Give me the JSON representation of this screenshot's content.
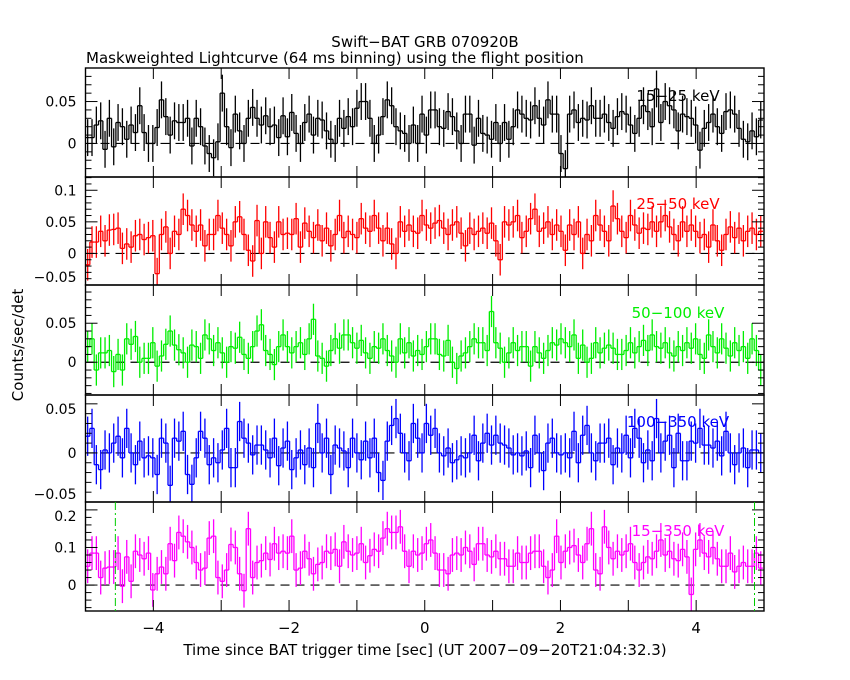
{
  "chart_data": {
    "type": "line",
    "title": "Swift−BAT GRB 070920B",
    "subtitle": "Maskweighted Lightcurve (64 ms binning) using the flight position",
    "xlabel": "Time since BAT trigger time [sec] (UT 2007−09−20T21:04:32.3)",
    "ylabel": "Counts/sec/det",
    "xlim": [
      -5,
      5
    ],
    "x_start": -5.0,
    "bin_width": 0.064,
    "xticks": [
      -4,
      -2,
      0,
      2,
      4
    ],
    "xtick_labels": [
      "−4",
      "−2",
      "0",
      "2",
      "4"
    ],
    "xminor_step": 1,
    "markers": [
      {
        "x": -4.56,
        "color": "#00cc00",
        "panel": 4
      },
      {
        "x": 4.86,
        "color": "#00cc00",
        "panel": 4
      }
    ],
    "panels": [
      {
        "name": "15−25 keV",
        "color": "#000000",
        "ylim": [
          -0.04,
          0.09
        ],
        "yticks": [
          0,
          0.05
        ],
        "ytick_labels": [
          "0",
          "0.05"
        ],
        "yminor_step": 0.01,
        "error": 0.022,
        "values": [
          0.007,
          0.007,
          0.022,
          0.027,
          -0.007,
          0.03,
          -0.004,
          0.025,
          0.02,
          0.005,
          0.022,
          0.013,
          0.045,
          0.013,
          0.0,
          0.0,
          0.019,
          0.052,
          0.032,
          0.01,
          0.027,
          0.025,
          0.025,
          0.03,
          -0.003,
          0.03,
          0.02,
          -0.003,
          -0.012,
          -0.017,
          0.002,
          0.06,
          0.02,
          -0.005,
          0.035,
          0.015,
          0.0,
          0.03,
          0.043,
          0.03,
          0.022,
          0.033,
          0.02,
          0.022,
          0.007,
          0.033,
          0.008,
          0.037,
          0.012,
          0.0,
          0.025,
          0.035,
          0.01,
          0.03,
          0.028,
          0.015,
          0.005,
          0.0,
          0.03,
          0.018,
          0.032,
          0.02,
          0.042,
          0.05,
          0.05,
          0.03,
          0.0,
          0.01,
          0.032,
          0.052,
          0.045,
          0.02,
          0.015,
          0.012,
          0.0,
          0.022,
          0.0,
          0.035,
          0.01,
          0.04,
          0.04,
          0.02,
          0.018,
          0.038,
          0.032,
          0.015,
          0.0,
          0.035,
          0.035,
          -0.002,
          0.03,
          0.012,
          0.01,
          0.005,
          0.025,
          0.0,
          0.025,
          0.005,
          0.02,
          0.04,
          0.035,
          0.03,
          0.028,
          0.045,
          0.03,
          0.022,
          0.052,
          0.035,
          0.035,
          -0.012,
          -0.03,
          0.035,
          0.04,
          0.025,
          0.03,
          0.028,
          0.045,
          0.03,
          0.03,
          0.035,
          0.025,
          0.018,
          0.032,
          0.038,
          0.035,
          0.022,
          0.012,
          0.03,
          0.045,
          0.038,
          0.02,
          0.065,
          0.025,
          0.05,
          0.045,
          0.04,
          0.015,
          0.035,
          0.032,
          0.03,
          0.022,
          -0.008,
          0.018,
          0.025,
          0.035,
          0.02,
          0.012,
          0.038,
          0.04,
          0.035,
          0.018,
          0.005,
          0.002,
          0.015,
          0.008,
          0.028
        ]
      },
      {
        "name": "25−50 keV",
        "color": "#ff0000",
        "ylim": [
          -0.05,
          0.121
        ],
        "yticks": [
          -0.05,
          0,
          0.05,
          0.1
        ],
        "ytick_labels": [
          "−0.05",
          "0",
          "0.05",
          "0.1"
        ],
        "yminor_step": 0.01,
        "error": 0.025,
        "values": [
          -0.018,
          0.018,
          0.018,
          0.035,
          0.02,
          0.037,
          0.038,
          0.04,
          0.008,
          0.015,
          0.01,
          0.028,
          0.03,
          0.022,
          0.025,
          0.028,
          -0.032,
          0.03,
          0.042,
          0.0,
          0.035,
          0.03,
          0.07,
          0.06,
          0.045,
          0.035,
          0.045,
          0.012,
          0.03,
          0.03,
          0.06,
          0.04,
          0.03,
          0.012,
          0.05,
          0.058,
          0.03,
          0.005,
          -0.012,
          0.052,
          0.0,
          0.05,
          0.025,
          0.01,
          0.05,
          0.03,
          0.032,
          0.03,
          0.055,
          0.01,
          0.048,
          0.035,
          0.025,
          0.045,
          0.02,
          0.04,
          0.012,
          0.03,
          0.06,
          0.025,
          0.035,
          0.03,
          0.025,
          0.055,
          0.04,
          0.035,
          0.06,
          0.04,
          0.02,
          0.04,
          0.015,
          0.0,
          0.05,
          0.035,
          0.045,
          0.035,
          0.032,
          0.06,
          0.045,
          0.04,
          0.048,
          0.052,
          0.04,
          0.03,
          0.045,
          0.05,
          0.032,
          0.012,
          0.04,
          0.03,
          0.035,
          0.04,
          0.032,
          0.048,
          0.02,
          -0.01,
          0.05,
          0.045,
          0.05,
          0.06,
          0.025,
          0.035,
          0.055,
          0.07,
          0.035,
          0.04,
          0.05,
          0.03,
          0.045,
          0.035,
          0.005,
          0.045,
          0.03,
          0.05,
          0.0,
          0.03,
          0.02,
          0.06,
          0.045,
          0.035,
          0.02,
          0.075,
          0.055,
          0.035,
          0.025,
          0.06,
          0.045,
          0.032,
          0.04,
          0.038,
          0.05,
          0.035,
          0.05,
          0.06,
          0.042,
          0.03,
          0.02,
          0.05,
          0.035,
          0.045,
          0.035,
          0.025,
          0.03,
          0.01,
          0.045,
          0.02,
          0.005,
          0.03,
          0.042,
          0.025,
          0.04,
          0.02,
          0.035,
          0.04,
          0.03,
          0.035
        ]
      },
      {
        "name": "50−100 keV",
        "color": "#00ee00",
        "ylim": [
          -0.042,
          0.099
        ],
        "yticks": [
          0,
          0.05
        ],
        "ytick_labels": [
          "0",
          "0.05"
        ],
        "yminor_step": 0.01,
        "error": 0.02,
        "values": [
          0.02,
          0.03,
          -0.01,
          0.012,
          0.012,
          0.015,
          -0.012,
          0.01,
          -0.01,
          0.03,
          0.023,
          0.033,
          0.0,
          0.005,
          0.005,
          0.025,
          -0.005,
          0.008,
          0.023,
          0.04,
          0.022,
          0.016,
          0.012,
          0.0,
          0.022,
          0.02,
          0.005,
          0.035,
          0.03,
          0.015,
          0.025,
          0.012,
          0.0,
          0.02,
          0.018,
          0.032,
          0.01,
          0.005,
          0.02,
          0.04,
          0.048,
          0.015,
          0.01,
          -0.003,
          0.02,
          0.035,
          0.02,
          0.012,
          0.02,
          0.025,
          0.01,
          0.03,
          0.055,
          0.008,
          0.005,
          -0.005,
          0.015,
          0.03,
          0.018,
          0.035,
          0.035,
          0.025,
          0.018,
          0.028,
          0.012,
          0.005,
          0.02,
          0.018,
          0.03,
          0.015,
          0.008,
          0.0,
          0.03,
          0.012,
          0.025,
          0.008,
          0.015,
          0.01,
          0.02,
          0.03,
          0.03,
          0.01,
          0.008,
          0.028,
          0.0,
          -0.008,
          0.008,
          0.012,
          0.02,
          0.03,
          0.025,
          0.025,
          0.015,
          0.065,
          0.025,
          0.018,
          0.0,
          0.012,
          0.025,
          0.015,
          0.02,
          0.02,
          -0.005,
          0.02,
          0.012,
          0.005,
          0.015,
          0.025,
          0.022,
          0.03,
          0.025,
          0.02,
          0.035,
          0.005,
          0.022,
          0.0,
          0.005,
          0.025,
          0.012,
          0.018,
          0.022,
          0.018,
          0.01,
          0.01,
          0.015,
          0.025,
          0.012,
          0.02,
          0.028,
          0.015,
          0.035,
          0.02,
          0.018,
          0.025,
          0.012,
          0.008,
          0.02,
          0.015,
          0.025,
          0.018,
          0.03,
          0.01,
          0.005,
          0.035,
          0.02,
          0.012,
          0.03,
          0.018,
          0.008,
          0.025,
          0.015,
          0.02,
          0.005,
          0.03,
          0.015,
          -0.01
        ]
      },
      {
        "name": "100−350 keV",
        "color": "#0000ff",
        "ylim": [
          -0.05,
          0.059
        ],
        "yticks": [
          -0.05,
          0,
          0.05
        ],
        "ytick_labels": [
          "−0.05",
          "0",
          "0.05"
        ],
        "yminor_step": 0.01,
        "error": 0.02,
        "values": [
          0.017,
          0.025,
          -0.012,
          -0.017,
          0.003,
          0.0,
          0.01,
          0.017,
          -0.005,
          0.025,
          0.0,
          -0.012,
          0.012,
          -0.005,
          -0.003,
          -0.005,
          -0.022,
          0.015,
          0.01,
          -0.033,
          0.015,
          0.012,
          0.022,
          -0.022,
          -0.032,
          -0.005,
          0.022,
          0.015,
          -0.012,
          -0.005,
          -0.01,
          0.003,
          0.025,
          -0.015,
          -0.015,
          0.032,
          0.015,
          0.01,
          -0.002,
          0.008,
          0.008,
          0.003,
          -0.005,
          0.015,
          -0.013,
          0.005,
          0.012,
          -0.017,
          -0.005,
          0.003,
          -0.012,
          0.005,
          -0.015,
          0.03,
          0.0,
          0.015,
          -0.022,
          0.008,
          0.005,
          0.002,
          -0.015,
          0.015,
          0.0,
          -0.007,
          0.012,
          -0.005,
          0.015,
          -0.02,
          -0.028,
          0.012,
          0.028,
          0.035,
          0.02,
          0.0,
          -0.008,
          0.03,
          0.015,
          0.0,
          0.03,
          0.018,
          0.025,
          0.0,
          -0.003,
          0.005,
          -0.01,
          -0.007,
          -0.003,
          -0.005,
          0.0,
          0.018,
          -0.008,
          0.01,
          0.02,
          0.008,
          0.018,
          0.01,
          0.008,
          0.005,
          -0.002,
          0.0,
          -0.003,
          0.002,
          -0.015,
          0.018,
          0.0,
          -0.018,
          0.01,
          0.015,
          0.0,
          -0.002,
          0.0,
          -0.005,
          0.022,
          -0.01,
          0.018,
          0.028,
          0.0,
          -0.008,
          0.01,
          0.01,
          0.015,
          -0.012,
          0.005,
          0.0,
          0.018,
          -0.005,
          0.025,
          0.015,
          -0.01,
          0.003,
          -0.008,
          0.035,
          0.0,
          0.012,
          0.018,
          -0.015,
          0.02,
          -0.008,
          -0.008,
          0.012,
          0.01,
          0.025,
          0.008,
          0.008,
          0.005,
          0.012,
          -0.003,
          0.022,
          0.0,
          -0.012,
          0.0,
          0.005,
          -0.015,
          0.003,
          0.003,
          0.0
        ]
      },
      {
        "name": "15−350 keV",
        "color": "#ff00ff",
        "ylim": [
          -0.069,
          0.221
        ],
        "yticks": [
          0,
          0.1,
          0.2
        ],
        "ytick_labels": [
          "0",
          "0.1",
          "0.2"
        ],
        "yminor_step": 0.02,
        "error": 0.045,
        "values": [
          0.05,
          0.085,
          0.085,
          0.02,
          0.045,
          0.048,
          0.048,
          0.085,
          -0.003,
          0.075,
          0.01,
          0.09,
          0.08,
          0.07,
          0.085,
          -0.013,
          0.03,
          0.048,
          0.03,
          0.11,
          0.065,
          0.14,
          0.13,
          0.115,
          0.1,
          0.06,
          0.04,
          0.045,
          0.125,
          0.13,
          0.02,
          0.01,
          0.04,
          0.108,
          0.1,
          0.03,
          -0.015,
          0.15,
          0.02,
          0.06,
          0.065,
          0.085,
          0.068,
          0.11,
          0.085,
          0.09,
          0.085,
          0.13,
          0.04,
          0.045,
          0.09,
          0.07,
          0.03,
          0.055,
          0.06,
          0.09,
          0.085,
          0.095,
          0.05,
          0.115,
          0.09,
          0.08,
          0.085,
          0.11,
          0.06,
          0.078,
          0.095,
          0.09,
          0.125,
          0.15,
          0.14,
          0.14,
          0.155,
          0.09,
          0.05,
          0.09,
          0.08,
          0.085,
          0.11,
          0.12,
          0.085,
          0.04,
          0.04,
          0.03,
          0.08,
          0.085,
          0.08,
          0.1,
          0.09,
          0.055,
          0.11,
          0.11,
          0.08,
          0.075,
          0.09,
          0.07,
          0.07,
          0.05,
          0.05,
          0.085,
          0.06,
          0.06,
          0.085,
          0.09,
          0.09,
          0.05,
          0.02,
          0.04,
          0.13,
          0.06,
          0.09,
          0.1,
          0.105,
          0.08,
          0.06,
          0.11,
          0.15,
          0.04,
          0.03,
          0.155,
          0.1,
          0.07,
          0.09,
          0.08,
          0.09,
          0.11,
          0.06,
          0.04,
          0.06,
          0.075,
          0.07,
          0.09,
          0.12,
          0.08,
          0.09,
          0.07,
          0.065,
          0.095,
          0.075,
          -0.025,
          0.095,
          0.12,
          0.085,
          0.075,
          0.1,
          0.07,
          0.05,
          0.05,
          0.085,
          0.035,
          0.05,
          0.06,
          0.05,
          0.05,
          0.085,
          0.045
        ]
      }
    ]
  }
}
